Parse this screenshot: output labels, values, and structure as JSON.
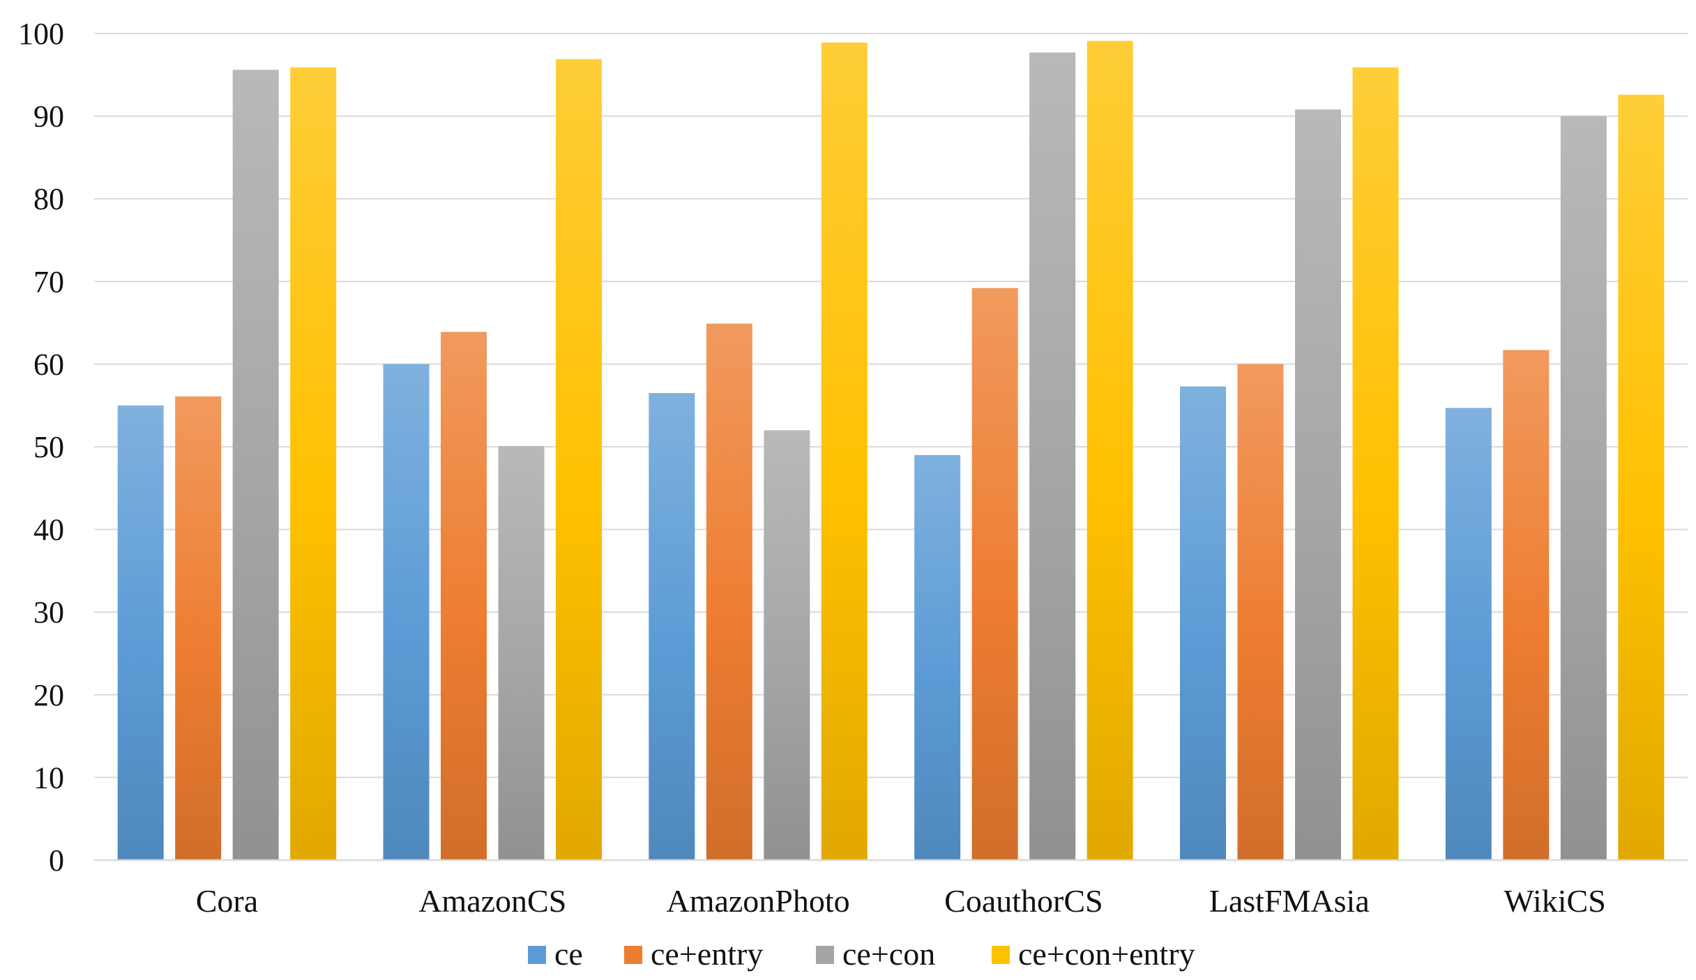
{
  "chart_data": {
    "type": "bar",
    "title": "",
    "xlabel": "",
    "ylabel": "",
    "ylim": [
      0,
      100
    ],
    "yticks": [
      "0",
      "10",
      "20",
      "30",
      "40",
      "50",
      "60",
      "70",
      "80",
      "90",
      "100"
    ],
    "grid": true,
    "legend_position": "bottom",
    "categories": [
      "Cora",
      "AmazonCS",
      "AmazonPhoto",
      "CoauthorCS",
      "LastFMAsia",
      "WikiCS"
    ],
    "series": [
      {
        "name": "ce",
        "color": "#5b9bd5",
        "values": [
          55.0,
          60.0,
          56.5,
          49.0,
          57.3,
          54.7
        ]
      },
      {
        "name": "ce+entry",
        "color": "#ed7d31",
        "values": [
          56.1,
          63.9,
          64.9,
          69.2,
          60.0,
          61.7
        ]
      },
      {
        "name": "ce+con",
        "color": "#a5a5a5",
        "values": [
          95.6,
          50.1,
          52.0,
          97.7,
          90.8,
          90.0
        ]
      },
      {
        "name": "ce+con+entry",
        "color": "#ffc000",
        "values": [
          95.9,
          96.9,
          98.9,
          99.1,
          95.9,
          92.6
        ]
      }
    ]
  }
}
